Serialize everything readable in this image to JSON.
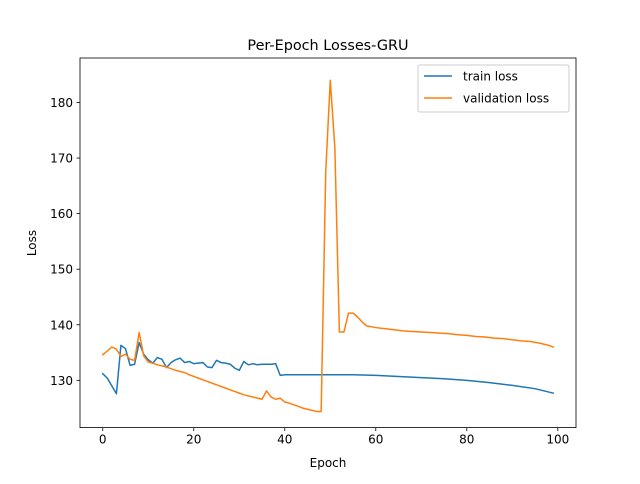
{
  "chart_data": {
    "type": "line",
    "title": "Per-Epoch Losses-GRU",
    "xlabel": "Epoch",
    "ylabel": "Loss",
    "xlim": [
      -5,
      104
    ],
    "ylim": [
      121.5,
      188
    ],
    "xticks": [
      0,
      20,
      40,
      60,
      80,
      100
    ],
    "yticks": [
      130,
      140,
      150,
      160,
      170,
      180
    ],
    "grid": false,
    "legend_position": "top-right",
    "series": [
      {
        "name": "train loss",
        "color": "#1f77b4",
        "x": [
          0,
          1,
          2,
          3,
          4,
          5,
          6,
          7,
          8,
          9,
          10,
          11,
          12,
          13,
          14,
          15,
          16,
          17,
          18,
          19,
          20,
          21,
          22,
          23,
          24,
          25,
          26,
          27,
          28,
          29,
          30,
          31,
          32,
          33,
          34,
          35,
          36,
          37,
          38,
          39,
          40,
          45,
          50,
          55,
          60,
          65,
          70,
          75,
          80,
          85,
          90,
          95,
          99
        ],
        "values": [
          131.2,
          130.4,
          129.0,
          127.6,
          136.3,
          135.7,
          132.7,
          132.9,
          136.8,
          134.7,
          133.7,
          133.1,
          134.1,
          133.8,
          132.3,
          133.2,
          133.7,
          134.0,
          133.2,
          133.4,
          133.0,
          133.1,
          133.2,
          132.4,
          132.3,
          133.6,
          133.2,
          133.1,
          132.9,
          132.2,
          131.8,
          133.4,
          132.8,
          133.0,
          132.8,
          132.9,
          132.9,
          132.9,
          133.0,
          130.9,
          131.0,
          131.0,
          131.0,
          131.0,
          130.9,
          130.7,
          130.5,
          130.3,
          130.0,
          129.6,
          129.1,
          128.5,
          127.7
        ]
      },
      {
        "name": "validation loss",
        "color": "#ff7f0e",
        "x": [
          0,
          1,
          2,
          3,
          4,
          5,
          6,
          7,
          8,
          9,
          10,
          11,
          12,
          13,
          14,
          15,
          16,
          17,
          18,
          19,
          20,
          21,
          22,
          23,
          24,
          25,
          26,
          27,
          28,
          29,
          30,
          31,
          32,
          33,
          34,
          35,
          36,
          37,
          38,
          39,
          40,
          41,
          42,
          43,
          44,
          45,
          46,
          47,
          48,
          49,
          50,
          51,
          52,
          53,
          54,
          55,
          56,
          57,
          58,
          60,
          62,
          64,
          66,
          68,
          70,
          72,
          74,
          76,
          78,
          80,
          82,
          84,
          86,
          88,
          90,
          92,
          94,
          96,
          98,
          99
        ],
        "values": [
          134.6,
          135.3,
          136.0,
          135.6,
          134.3,
          134.7,
          133.8,
          133.6,
          138.6,
          134.4,
          133.3,
          133.1,
          132.8,
          132.6,
          132.4,
          132.1,
          131.8,
          131.6,
          131.4,
          131.0,
          130.7,
          130.4,
          130.1,
          129.8,
          129.5,
          129.2,
          128.9,
          128.6,
          128.3,
          128.0,
          127.7,
          127.4,
          127.2,
          127.0,
          126.8,
          126.6,
          128.1,
          127.0,
          126.6,
          126.8,
          126.1,
          125.9,
          125.6,
          125.3,
          125.0,
          124.8,
          124.6,
          124.4,
          124.4,
          167.5,
          184.0,
          172.0,
          138.7,
          138.7,
          142.1,
          142.1,
          141.4,
          140.5,
          139.8,
          139.5,
          139.3,
          139.1,
          138.9,
          138.8,
          138.7,
          138.6,
          138.5,
          138.4,
          138.2,
          138.1,
          137.9,
          137.8,
          137.6,
          137.5,
          137.3,
          137.1,
          137.0,
          136.7,
          136.3,
          136.0
        ]
      }
    ]
  }
}
